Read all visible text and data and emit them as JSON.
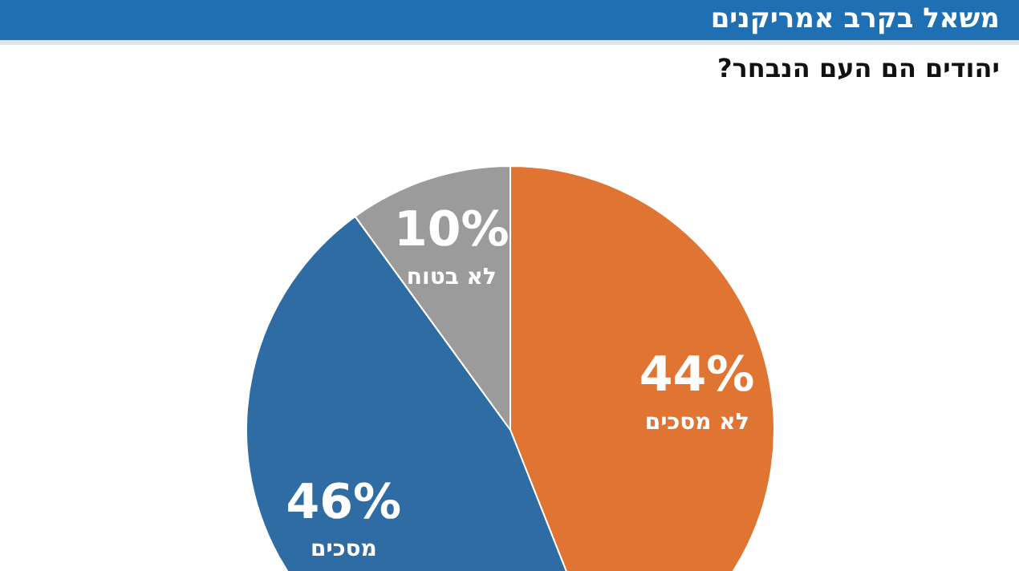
{
  "chart_data": {
    "type": "pie",
    "title": "משאל בקרב אמריקנים",
    "subtitle": "יהודים הם העם הנבחר?",
    "categories": [
      "לא מסכים",
      "מסכים",
      "לא בטוח"
    ],
    "values": [
      44,
      46,
      10
    ],
    "colors": [
      "#e07433",
      "#2e6ca3",
      "#9b9b9b"
    ],
    "value_labels": [
      "44%",
      "46%",
      "10%"
    ],
    "legend": false
  }
}
